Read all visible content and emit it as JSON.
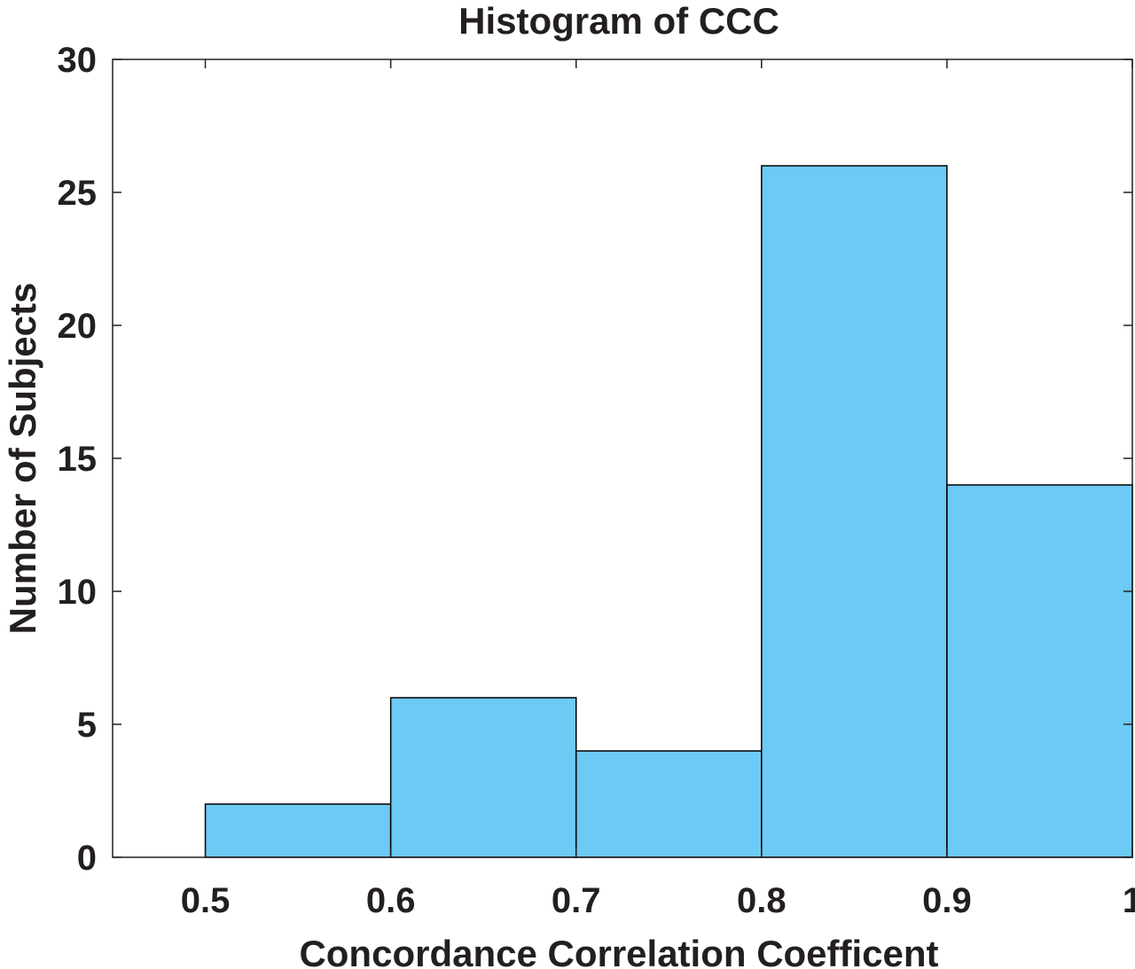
{
  "chart_data": {
    "type": "bar",
    "title": "Histogram of CCC",
    "xlabel": "Concordance Correlation Coefficent",
    "ylabel": "Number of Subjects",
    "bins": [
      {
        "from": 0.5,
        "to": 0.6,
        "count": 2
      },
      {
        "from": 0.6,
        "to": 0.7,
        "count": 6
      },
      {
        "from": 0.7,
        "to": 0.8,
        "count": 4
      },
      {
        "from": 0.8,
        "to": 0.9,
        "count": 26
      },
      {
        "from": 0.9,
        "to": 1.0,
        "count": 14
      }
    ],
    "xlim": [
      0.45,
      1.0
    ],
    "ylim": [
      0,
      30
    ],
    "xticks": [
      0.5,
      0.6,
      0.7,
      0.8,
      0.9,
      1.0
    ],
    "xtick_labels": [
      "0.5",
      "0.6",
      "0.7",
      "0.8",
      "0.9",
      "1"
    ],
    "yticks": [
      0,
      5,
      10,
      15,
      20,
      25,
      30
    ],
    "ytick_labels": [
      "0",
      "5",
      "10",
      "15",
      "20",
      "25",
      "30"
    ],
    "grid": false,
    "legend": "none",
    "bar_color": "#6dcaf4",
    "edge_color": "#000000"
  }
}
